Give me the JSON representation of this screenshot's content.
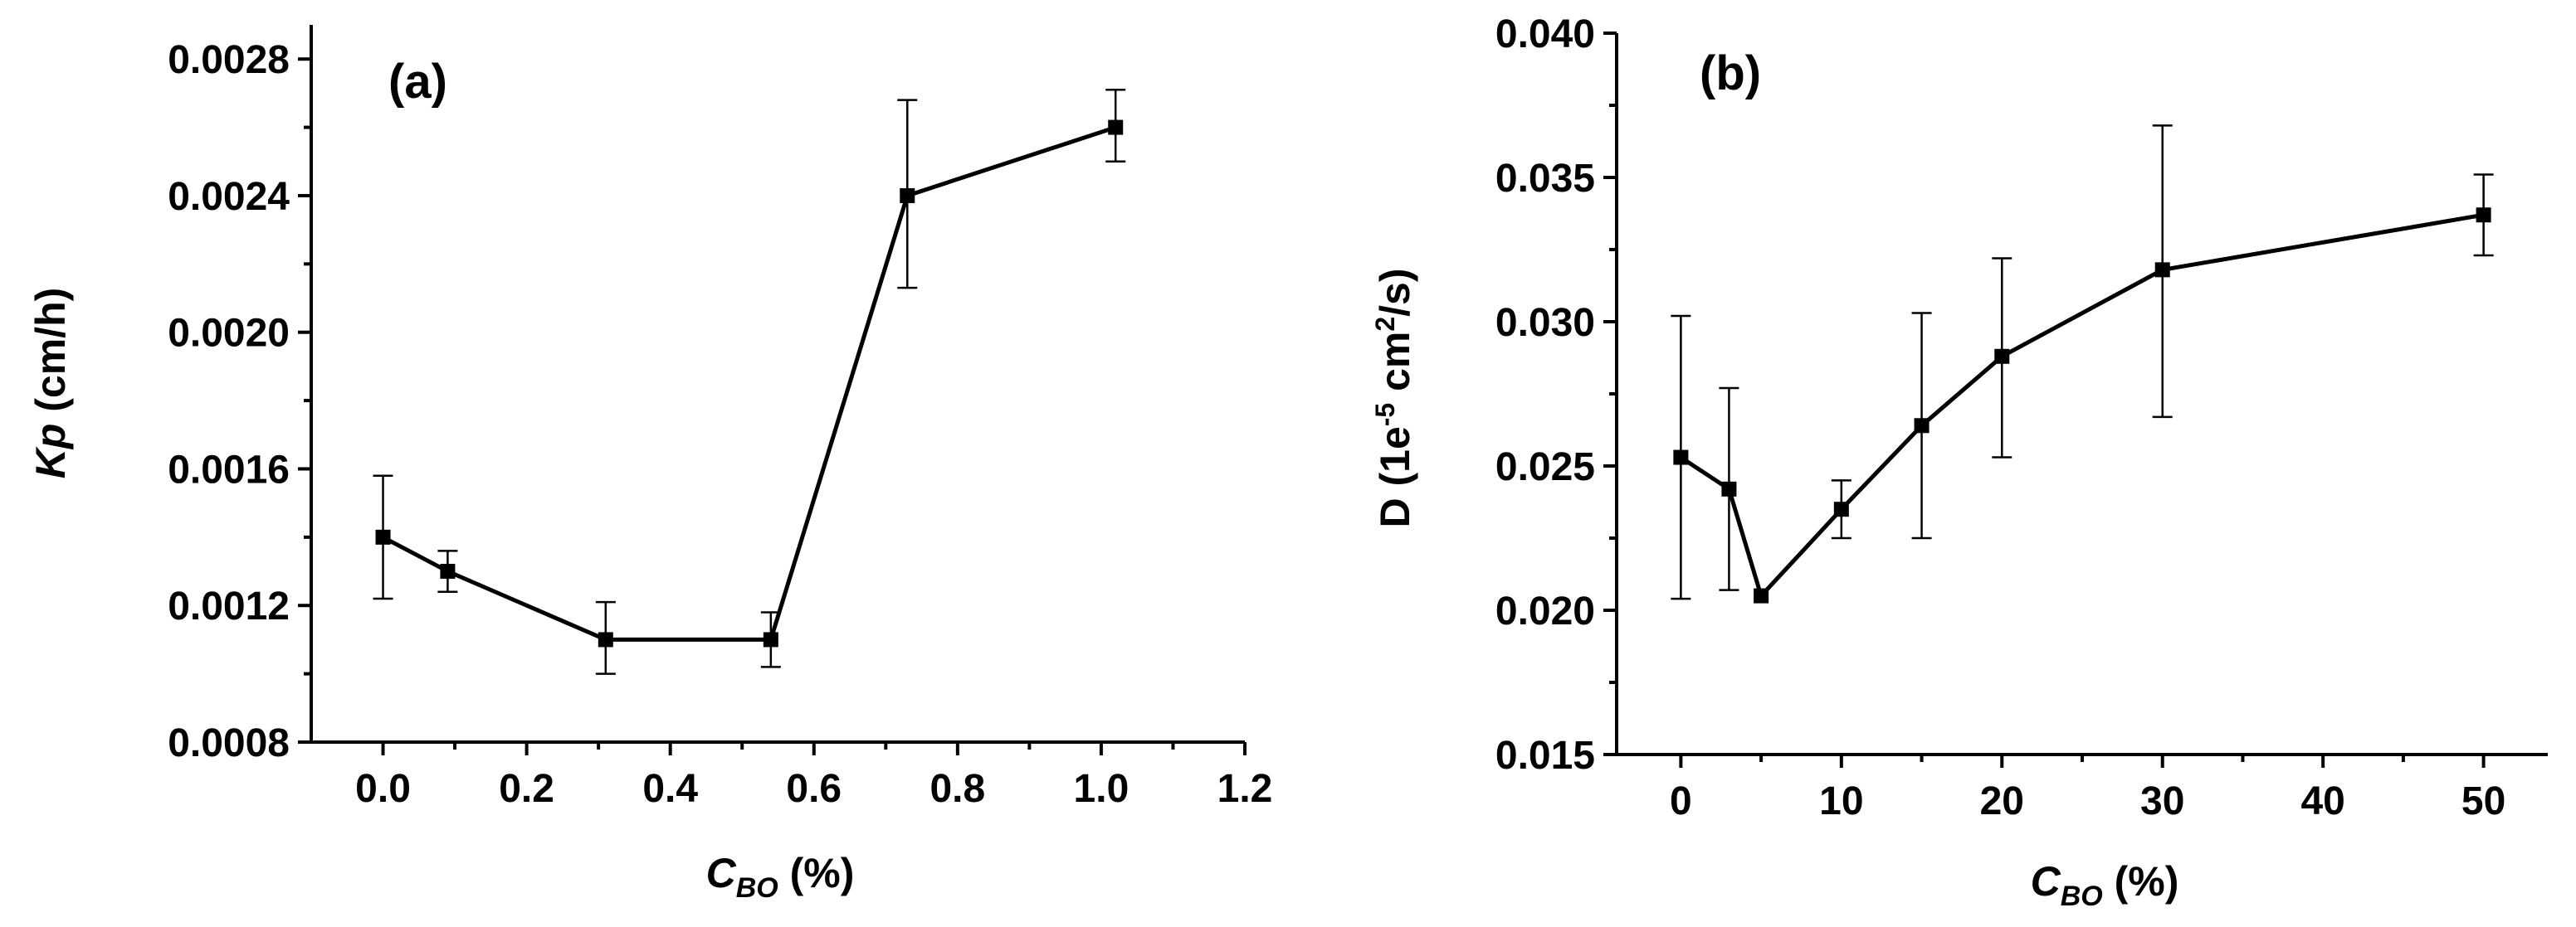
{
  "chart_data": [
    {
      "type": "line",
      "panel_label": "(a)",
      "ylabel_italic": "Kp",
      "ylabel_rest": " (cm/h)",
      "xlabel_main": "C",
      "xlabel_sub": "BO",
      "xlabel_unit": " (%)",
      "xlim": [
        -0.1,
        1.2
      ],
      "ylim": [
        0.0008,
        0.0029
      ],
      "xticks": [
        0.0,
        0.2,
        0.4,
        0.6,
        0.8,
        1.0,
        1.2
      ],
      "xtick_labels": [
        "0.0",
        "0.2",
        "0.4",
        "0.6",
        "0.8",
        "1.0",
        "1.2"
      ],
      "yticks": [
        0.0008,
        0.0012,
        0.0016,
        0.002,
        0.0024,
        0.0028
      ],
      "ytick_labels": [
        "0.0008",
        "0.0012",
        "0.0016",
        "0.0020",
        "0.0024",
        "0.0028"
      ],
      "x": [
        0.0,
        0.09,
        0.31,
        0.54,
        0.73,
        1.02
      ],
      "y": [
        0.0014,
        0.0013,
        0.0011,
        0.0011,
        0.0024,
        0.0026
      ],
      "err_low": [
        0.00122,
        0.00124,
        0.001,
        0.00102,
        0.00213,
        0.0025
      ],
      "err_high": [
        0.00158,
        0.00136,
        0.00121,
        0.00118,
        0.00268,
        0.00271
      ]
    },
    {
      "type": "line",
      "panel_label": "(b)",
      "ylabel_pre": "D (1e",
      "ylabel_sup1": "-5",
      "ylabel_mid": " cm",
      "ylabel_sup2": "2",
      "ylabel_post": "/s)",
      "xlabel_main": "C",
      "xlabel_sub": "BO",
      "xlabel_unit": " (%)",
      "xlim": [
        -4,
        54
      ],
      "ylim": [
        0.015,
        0.04
      ],
      "xticks": [
        0,
        10,
        20,
        30,
        40,
        50
      ],
      "xtick_labels": [
        "0",
        "10",
        "20",
        "30",
        "40",
        "50"
      ],
      "yticks": [
        0.015,
        0.02,
        0.025,
        0.03,
        0.035,
        0.04
      ],
      "ytick_labels": [
        "0.015",
        "0.020",
        "0.025",
        "0.030",
        "0.035",
        "0.040"
      ],
      "x": [
        0,
        3,
        5,
        10,
        15,
        20,
        30,
        50
      ],
      "y": [
        0.0253,
        0.0242,
        0.0205,
        0.0235,
        0.0264,
        0.0288,
        0.0318,
        0.0337
      ],
      "err_low": [
        0.0204,
        0.0207,
        0.0205,
        0.0225,
        0.0225,
        0.0253,
        0.0267,
        0.0323
      ],
      "err_high": [
        0.0302,
        0.0277,
        0.0205,
        0.0245,
        0.0303,
        0.0322,
        0.0368,
        0.0351
      ]
    }
  ]
}
